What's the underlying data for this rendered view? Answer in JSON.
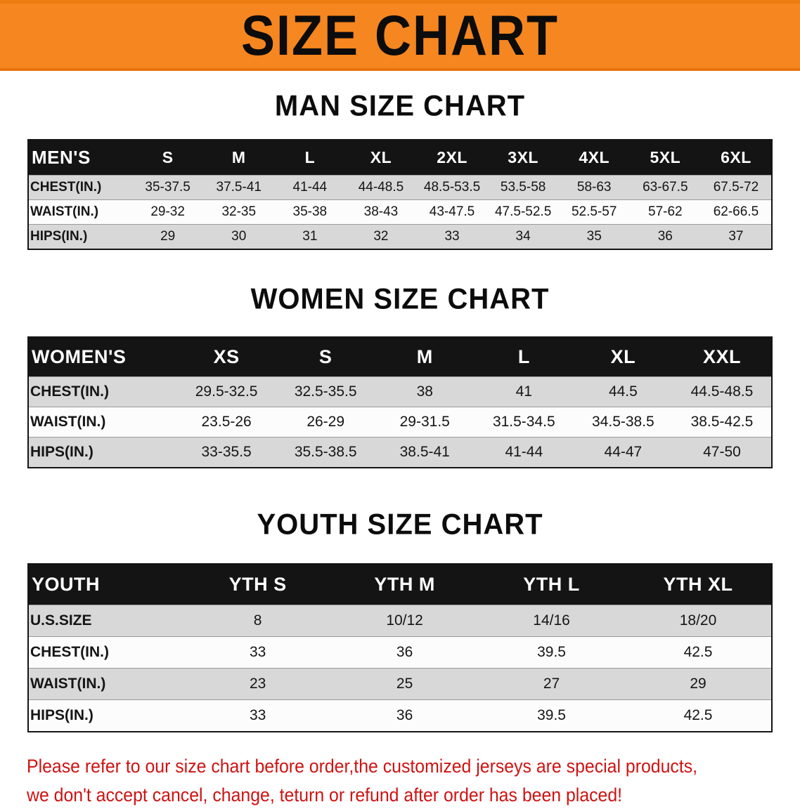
{
  "banner": {
    "title": "SIZE CHART",
    "background_color": "#f6861f"
  },
  "sections": {
    "men": {
      "heading": "MAN SIZE CHART",
      "table": {
        "header": [
          "MEN'S",
          "S",
          "M",
          "L",
          "XL",
          "2XL",
          "3XL",
          "4XL",
          "5XL",
          "6XL"
        ],
        "rows": [
          [
            "CHEST(IN.)",
            "35-37.5",
            "37.5-41",
            "41-44",
            "44-48.5",
            "48.5-53.5",
            "53.5-58",
            "58-63",
            "63-67.5",
            "67.5-72"
          ],
          [
            "WAIST(IN.)",
            "29-32",
            "32-35",
            "35-38",
            "38-43",
            "43-47.5",
            "47.5-52.5",
            "52.5-57",
            "57-62",
            "62-66.5"
          ],
          [
            "HIPS(IN.)",
            "29",
            "30",
            "31",
            "32",
            "33",
            "34",
            "35",
            "36",
            "37"
          ]
        ]
      }
    },
    "women": {
      "heading": "WOMEN SIZE CHART",
      "table": {
        "header": [
          "WOMEN'S",
          "XS",
          "S",
          "M",
          "L",
          "XL",
          "XXL"
        ],
        "rows": [
          [
            "CHEST(IN.)",
            "29.5-32.5",
            "32.5-35.5",
            "38",
            "41",
            "44.5",
            "44.5-48.5"
          ],
          [
            "WAIST(IN.)",
            "23.5-26",
            "26-29",
            "29-31.5",
            "31.5-34.5",
            "34.5-38.5",
            "38.5-42.5"
          ],
          [
            "HIPS(IN.)",
            "33-35.5",
            "35.5-38.5",
            "38.5-41",
            "41-44",
            "44-47",
            "47-50"
          ]
        ]
      }
    },
    "youth": {
      "heading": "YOUTH SIZE CHART",
      "table": {
        "header": [
          "YOUTH",
          "YTH S",
          "YTH M",
          "YTH L",
          "YTH XL"
        ],
        "rows": [
          [
            "U.S.SIZE",
            "8",
            "10/12",
            "14/16",
            "18/20"
          ],
          [
            "CHEST(IN.)",
            "33",
            "36",
            "39.5",
            "42.5"
          ],
          [
            "WAIST(IN.)",
            "23",
            "25",
            "27",
            "29"
          ],
          [
            "HIPS(IN.)",
            "33",
            "36",
            "39.5",
            "42.5"
          ]
        ]
      }
    }
  },
  "disclaimer": {
    "lines": [
      "Please refer to our size chart before order,the customized jerseys are special products,",
      "we don't accept cancel, change, teturn or refund after order has been placed!"
    ],
    "text_color": "#ce1312"
  },
  "colors": {
    "banner_orange": "#f6861f",
    "table_header_black": "#141414",
    "row_gray": "#d8d8d8",
    "row_white": "#fcfcfc",
    "disclaimer_red": "#ce1312"
  }
}
